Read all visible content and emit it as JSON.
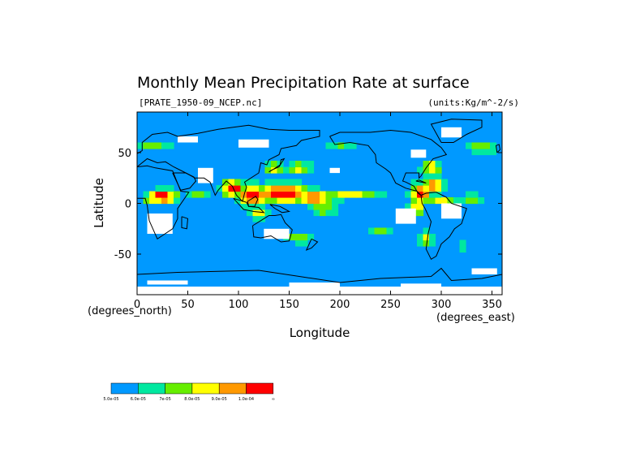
{
  "title": "Monthly Mean Precipitation Rate at surface",
  "subtitle_left": "[PRATE_1950-09_NCEP.nc]",
  "subtitle_right": "(units:Kg/m^-2/s)",
  "chart_data": {
    "type": "heatmap",
    "title": "Monthly Mean Precipitation Rate at surface",
    "xlabel": "Longitude",
    "ylabel": "Latitude",
    "xlim": [
      0,
      360
    ],
    "ylim": [
      -90,
      90
    ],
    "x_ticks": [
      "0",
      "50",
      "100",
      "150",
      "200",
      "250",
      "300",
      "350"
    ],
    "x_tick_values": [
      0,
      50,
      100,
      150,
      200,
      250,
      300,
      350
    ],
    "y_ticks": [
      "50",
      "0",
      "-50"
    ],
    "y_tick_values": [
      50,
      0,
      -50
    ],
    "x_unit_label": "(degrees_east)",
    "y_unit_label": "(degrees_north)",
    "background_color": "#0099ff",
    "missing_color": "#ffffff",
    "colorbar": {
      "colors": [
        "#0099ff",
        "#00e8a0",
        "#66ee00",
        "#ffff00",
        "#ff9900",
        "#ff0000"
      ],
      "labels": [
        "5.0e-05",
        "6.0e-05",
        "7e-05",
        "8.0e-05",
        "9.0e-05",
        "1.0e-04",
        "∞"
      ]
    },
    "heavy_precip_regions": [
      {
        "lon": [
          100,
          190
        ],
        "lat": [
          0,
          20
        ],
        "level": 5
      },
      {
        "lon": [
          10,
          40
        ],
        "lat": [
          0,
          15
        ],
        "level": 5
      },
      {
        "lon": [
          265,
          295
        ],
        "lat": [
          5,
          20
        ],
        "level": 5
      }
    ]
  }
}
